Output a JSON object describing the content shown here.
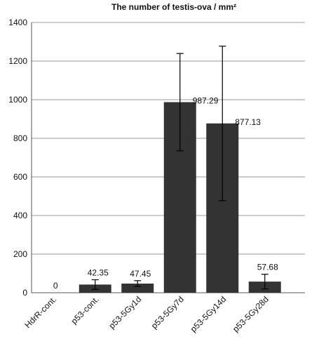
{
  "chart_data": {
    "type": "bar",
    "title": "The number of testis-ova / mm²",
    "categories": [
      "HdrR-cont.",
      "p53-cont.",
      "p53-5Gy1d",
      "p53-5Gy7d",
      "p53-5Gy14d",
      "p53-5Gy28d"
    ],
    "values": [
      0,
      42.35,
      47.45,
      987.29,
      877.13,
      57.68
    ],
    "errors": [
      0,
      25,
      15,
      252,
      400,
      38
    ],
    "color": "#333333",
    "ylim": [
      0,
      1400
    ],
    "yticks": [
      0,
      200,
      400,
      600,
      800,
      1000,
      1200,
      1400
    ],
    "grid": true
  }
}
